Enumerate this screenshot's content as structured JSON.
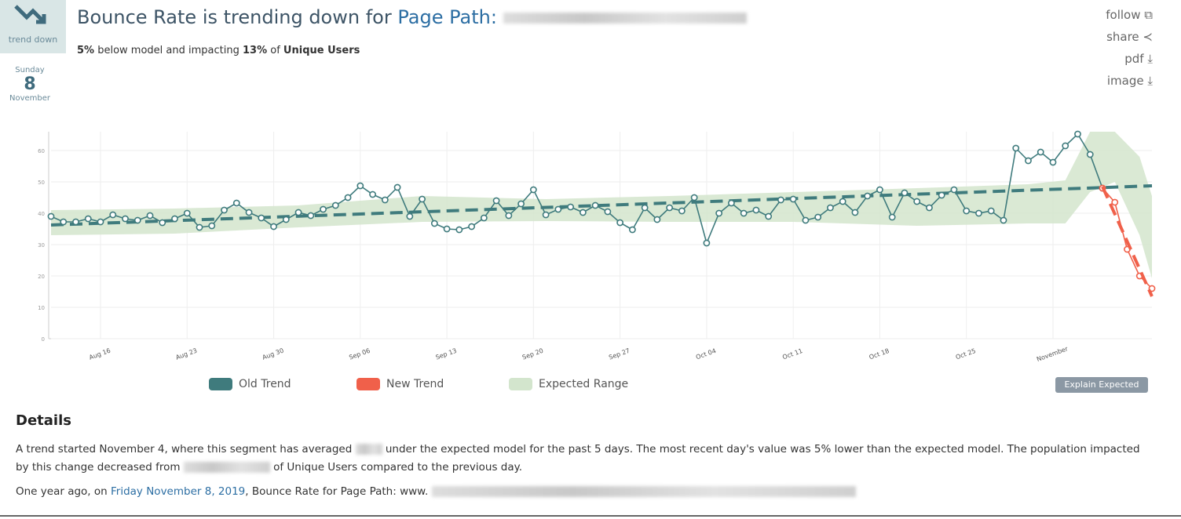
{
  "header": {
    "icon_label": "trend down",
    "day_name": "Sunday",
    "day": "8",
    "month": "November",
    "title": "Bounce Rate is trending down for",
    "title_link": "Page Path:",
    "summary": {
      "pct_below": "5%",
      "text1": "below model and impacting",
      "pct_impact": "13%",
      "text2": "of",
      "segment": "Unique Users"
    }
  },
  "actions": [
    "follow",
    "share",
    "pdf",
    "image"
  ],
  "chart_data": {
    "type": "line",
    "xlim": [
      0,
      89
    ],
    "xticks": [
      {
        "value": 4,
        "label": "Aug 16"
      },
      {
        "value": 11,
        "label": "Aug 23"
      },
      {
        "value": 18,
        "label": "Aug 30"
      },
      {
        "value": 25,
        "label": "Sep 06"
      },
      {
        "value": 32,
        "label": "Sep 13"
      },
      {
        "value": 39,
        "label": "Sep 20"
      },
      {
        "value": 46,
        "label": "Sep 27"
      },
      {
        "value": 53,
        "label": "Oct 04"
      },
      {
        "value": 60,
        "label": "Oct 11"
      },
      {
        "value": 67,
        "label": "Oct 18"
      },
      {
        "value": 74,
        "label": "Oct 25"
      },
      {
        "value": 81,
        "label": "November"
      }
    ],
    "ylim": [
      0,
      66
    ],
    "yticks": [
      0,
      10,
      20,
      30,
      40,
      50,
      60
    ],
    "grid": true,
    "series": [
      {
        "name": "Old Trend",
        "color": "#3f7b7d",
        "values": [
          39,
          37.25,
          37.25,
          38.25,
          37.25,
          39.5,
          38.25,
          37.75,
          39.25,
          37,
          38.25,
          40,
          35.5,
          36,
          41,
          43.25,
          40.25,
          38.5,
          35.75,
          38,
          40.25,
          39.25,
          41.25,
          42.5,
          45,
          48.75,
          46,
          44.25,
          48.25,
          39,
          44.5,
          36.75,
          35,
          34.75,
          35.75,
          38.5,
          44,
          39.25,
          43,
          47.5,
          39.5,
          41.25,
          42,
          40.25,
          42.5,
          40.5,
          37,
          34.75,
          41.75,
          38,
          41.75,
          40.75,
          45,
          30.5,
          40,
          43.25,
          40,
          41,
          39,
          44.25,
          44.5,
          37.75,
          38.75,
          41.75,
          43.75,
          40.25,
          45.5,
          47.5,
          38.75,
          46.5,
          43.75,
          41.75,
          45.75,
          47.5,
          40.75,
          40,
          40.75,
          37.75,
          60.75,
          56.75,
          59.5,
          56.25,
          61.5,
          65.25,
          58.75,
          48
        ]
      },
      {
        "name": "New Trend",
        "color": "#f0604a",
        "x": [
          85,
          86,
          87,
          88,
          89
        ],
        "values": [
          48,
          43.5,
          28.5,
          20,
          16
        ]
      }
    ],
    "old_trend_line": {
      "x": [
        0,
        89
      ],
      "values": [
        36.25,
        48.75
      ]
    },
    "new_trend_line": {
      "x": [
        85,
        89
      ],
      "values": [
        48.5,
        13.5
      ]
    },
    "expected_range": {
      "name": "Expected Range",
      "color": "#d3e5cd",
      "x": [
        0,
        10,
        20,
        30,
        40,
        50,
        60,
        70,
        79,
        82,
        84,
        86,
        88,
        89
      ],
      "upper": [
        41,
        41.5,
        42.5,
        45.5,
        44.5,
        45.5,
        46.75,
        48,
        49.25,
        50.5,
        66,
        66,
        58,
        45.5
      ],
      "lower": [
        33,
        33.5,
        35.5,
        37.25,
        37.5,
        37.25,
        37.25,
        36,
        36.75,
        36.75,
        46.75,
        50,
        33,
        19.25
      ]
    }
  },
  "button": "Explain Expected",
  "details": {
    "heading": "Details",
    "p1a": "A trend started November 4, where this segment has averaged",
    "p1b": "under the expected model for the past 5 days. The most recent day's value was 5% lower than the expected model. The population impacted by this change decreased from",
    "p1c": "of Unique Users compared to the previous day.",
    "p2a": "One year ago, on",
    "p2link": "Friday November 8, 2019",
    "p2b": ", Bounce Rate for Page Path: www."
  }
}
